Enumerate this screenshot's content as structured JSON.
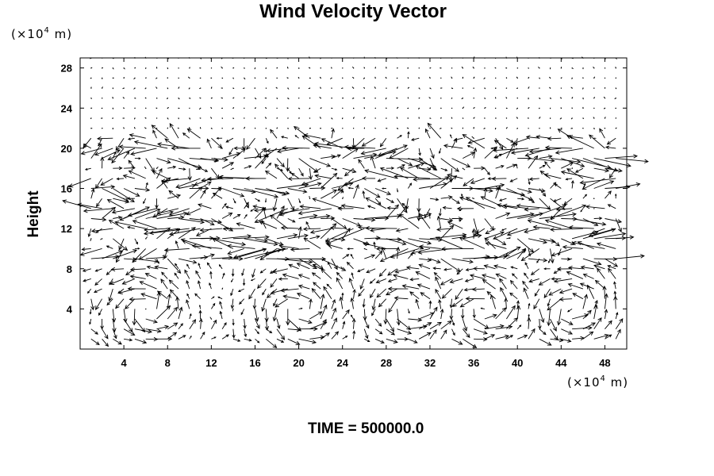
{
  "chart_data": {
    "type": "vector-field",
    "title": "Wind Velocity Vector",
    "xlabel": "",
    "ylabel": "Height",
    "x_unit": {
      "prefix": "(×10",
      "power": "4",
      "suffix": " m)"
    },
    "y_unit": {
      "prefix": "(×10",
      "power": "4",
      "suffix": " m)"
    },
    "xlim": [
      0,
      50
    ],
    "ylim": [
      0,
      29
    ],
    "x_ticks": [
      4,
      8,
      12,
      16,
      20,
      24,
      28,
      32,
      36,
      40,
      44,
      48
    ],
    "y_ticks": [
      4,
      8,
      12,
      16,
      20,
      24,
      28
    ],
    "grid": false,
    "footer": "TIME = 500000.0",
    "field_description": {
      "grid_spacing": [
        1.0,
        1.0
      ],
      "jet_levels": [
        20,
        19,
        17,
        16,
        14,
        13,
        12,
        11,
        10,
        9
      ],
      "circulation_cells_x": [
        6,
        20,
        30,
        37,
        45
      ],
      "cell_top": 8.5,
      "upper_quiet_from": 22
    }
  }
}
